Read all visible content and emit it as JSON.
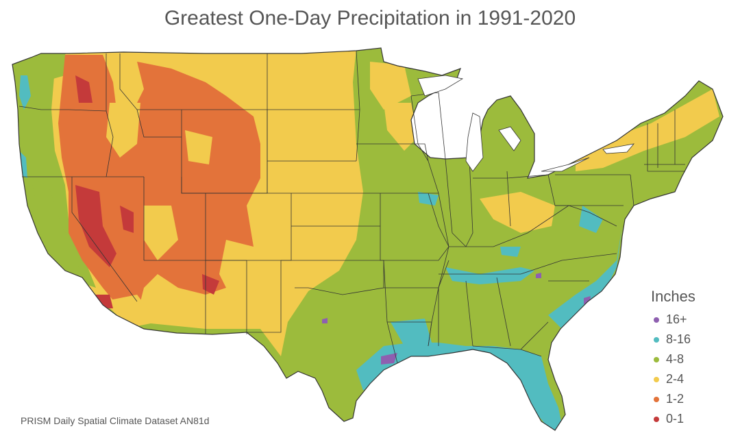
{
  "title": "Greatest One-Day Precipitation in 1991-2020",
  "legend": {
    "title": "Inches",
    "items": [
      {
        "label": "16+",
        "color": "#8e5fb0"
      },
      {
        "label": "8-16",
        "color": "#52bcc0"
      },
      {
        "label": "4-8",
        "color": "#9cbb3c"
      },
      {
        "label": "2-4",
        "color": "#f2cb4d"
      },
      {
        "label": "1-2",
        "color": "#e3733a"
      },
      {
        "label": "0-1",
        "color": "#c43a3a"
      }
    ]
  },
  "source": "PRISM Daily Spatial Climate Dataset AN81d"
}
